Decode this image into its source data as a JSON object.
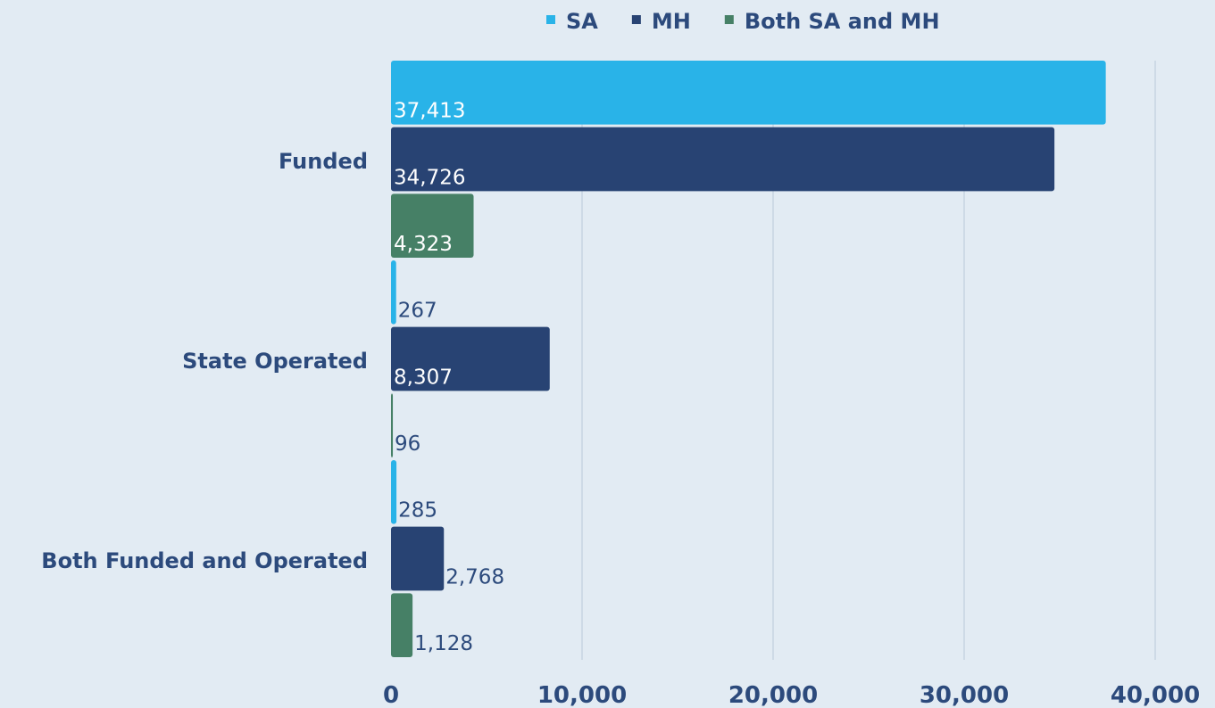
{
  "chart_data": {
    "type": "barh",
    "categories": [
      "Funded",
      "State Operated",
      "Both Funded and Operated"
    ],
    "series": [
      {
        "name": "SA",
        "color": "#29b3e8",
        "values": [
          37413,
          267,
          285
        ],
        "value_labels": [
          "37,413",
          "267",
          "285"
        ]
      },
      {
        "name": "MH",
        "color": "#284373",
        "values": [
          34726,
          8307,
          2768
        ],
        "value_labels": [
          "34,726",
          "8,307",
          "2,768"
        ]
      },
      {
        "name": "Both SA and MH",
        "color": "#468066",
        "values": [
          4323,
          96,
          1128
        ],
        "value_labels": [
          "4,323",
          "96",
          "1,128"
        ]
      }
    ],
    "xlim": [
      0,
      40000
    ],
    "xticks": [
      0,
      {
        "value": 10000,
        "label": "10,000"
      },
      {
        "value": 20000,
        "label": "20,000"
      },
      {
        "value": 30000,
        "label": "30,000"
      },
      {
        "value": 40000,
        "label": "40,000"
      }
    ],
    "grid": true,
    "legend": "top"
  }
}
